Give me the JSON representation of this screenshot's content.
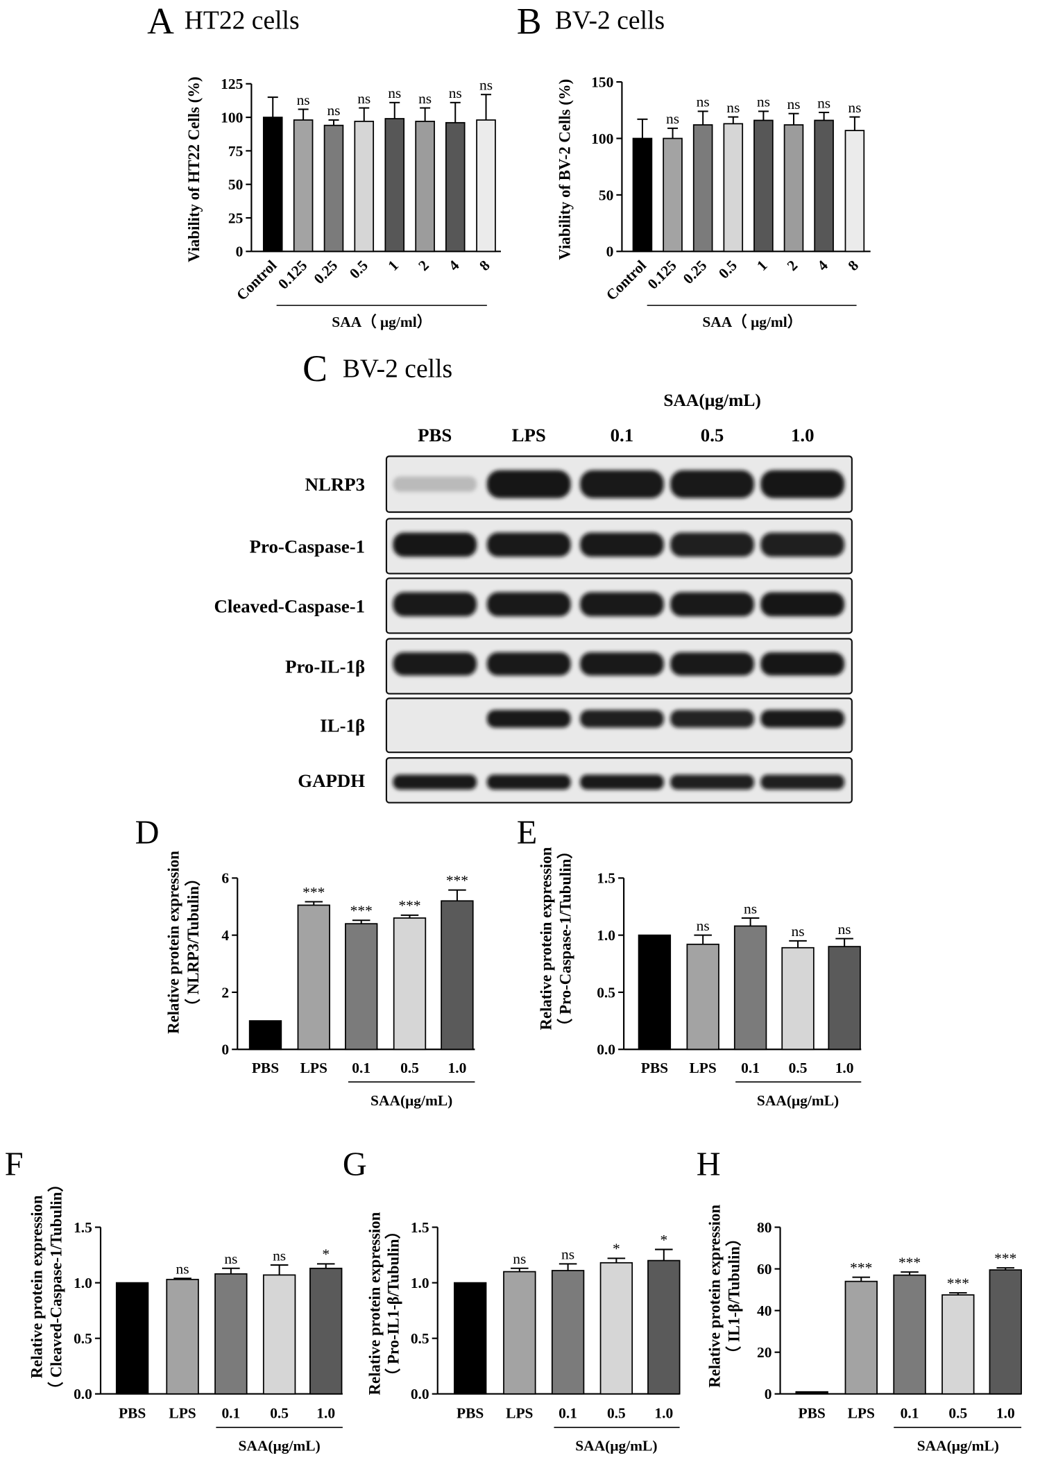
{
  "chart_data": [
    {
      "panel": "A",
      "title": "HT22 cells",
      "type": "bar",
      "ylabel": [
        "Viability of HT22 Cells (%)"
      ],
      "categories": [
        "Control",
        "0.125",
        "0.25",
        "0.5",
        "1",
        "2",
        "4",
        "8"
      ],
      "values": [
        100,
        98,
        94,
        97,
        99,
        97,
        96,
        98
      ],
      "errors": [
        15,
        8,
        4,
        10,
        12,
        10,
        15,
        19
      ],
      "significance": [
        "",
        "ns",
        "ns",
        "ns",
        "ns",
        "ns",
        "ns",
        "ns"
      ],
      "ylim": [
        0,
        125
      ],
      "yticks": [
        0,
        25,
        50,
        75,
        100,
        125
      ],
      "ytick_labels": [
        "0",
        "25",
        "50",
        "75",
        "100",
        "125"
      ],
      "group_label": "SAA（ μg/ml）",
      "group_span": [
        1,
        7
      ],
      "colors": [
        "#000000",
        "#a3a3a3",
        "#7b7b7b",
        "#d6d6d6",
        "#575757",
        "#9c9c9c",
        "#575757",
        "#ebebeb"
      ],
      "grid": false,
      "legend": "none"
    },
    {
      "panel": "B",
      "title": "BV-2 cells",
      "type": "bar",
      "ylabel": [
        "Viability of BV-2 Cells (%)"
      ],
      "categories": [
        "Control",
        "0.125",
        "0.25",
        "0.5",
        "1",
        "2",
        "4",
        "8"
      ],
      "values": [
        100,
        100,
        112,
        113,
        116,
        112,
        116,
        107
      ],
      "errors": [
        17,
        9,
        12,
        6,
        8,
        10,
        7,
        12
      ],
      "significance": [
        "",
        "ns",
        "ns",
        "ns",
        "ns",
        "ns",
        "ns",
        "ns"
      ],
      "ylim": [
        0,
        150
      ],
      "yticks": [
        0,
        50,
        100,
        150
      ],
      "ytick_labels": [
        "0",
        "50",
        "100",
        "150"
      ],
      "group_label": "SAA（ μg/ml）",
      "group_span": [
        1,
        7
      ],
      "colors": [
        "#000000",
        "#a3a3a3",
        "#7b7b7b",
        "#d6d6d6",
        "#575757",
        "#9c9c9c",
        "#575757",
        "#ebebeb"
      ],
      "grid": false,
      "legend": "none"
    },
    {
      "panel": "D",
      "type": "bar",
      "ylabel": [
        "Relative protein expression",
        "（ NLRP3/Tubulin）"
      ],
      "categories": [
        "PBS",
        "LPS",
        "0.1",
        "0.5",
        "1.0"
      ],
      "values": [
        1.0,
        5.05,
        4.4,
        4.6,
        5.2
      ],
      "errors": [
        0,
        0.12,
        0.12,
        0.1,
        0.38
      ],
      "significance": [
        "",
        "***",
        "***",
        "***",
        "***"
      ],
      "ylim": [
        0,
        6
      ],
      "yticks": [
        0,
        2,
        4,
        6
      ],
      "ytick_labels": [
        "0",
        "2",
        "4",
        "6"
      ],
      "group_label": "SAA(μg/mL)",
      "group_span": [
        2,
        4
      ],
      "colors": [
        "#000000",
        "#a3a3a3",
        "#7b7b7b",
        "#d6d6d6",
        "#5a5a5a"
      ],
      "grid": false,
      "legend": "none"
    },
    {
      "panel": "E",
      "type": "bar",
      "ylabel": [
        "Relative protein expression",
        "（ Pro-Caspase-1/Tubulin）"
      ],
      "categories": [
        "PBS",
        "LPS",
        "0.1",
        "0.5",
        "1.0"
      ],
      "values": [
        1.0,
        0.92,
        1.08,
        0.89,
        0.9
      ],
      "errors": [
        0,
        0.08,
        0.07,
        0.06,
        0.07
      ],
      "significance": [
        "",
        "ns",
        "ns",
        "ns",
        "ns"
      ],
      "ylim": [
        0,
        1.5
      ],
      "yticks": [
        0,
        0.5,
        1.0,
        1.5
      ],
      "ytick_labels": [
        "0.0",
        "0.5",
        "1.0",
        "1.5"
      ],
      "group_label": "SAA(μg/mL)",
      "group_span": [
        2,
        4
      ],
      "colors": [
        "#000000",
        "#a3a3a3",
        "#7b7b7b",
        "#d6d6d6",
        "#5a5a5a"
      ],
      "grid": false,
      "legend": "none"
    },
    {
      "panel": "F",
      "type": "bar",
      "ylabel": [
        "Relative protein expression",
        "（ Cleaved-Caspase-1/Tubulin）"
      ],
      "categories": [
        "PBS",
        "LPS",
        "0.1",
        "0.5",
        "1.0"
      ],
      "values": [
        1.0,
        1.03,
        1.08,
        1.07,
        1.13
      ],
      "errors": [
        0,
        0.01,
        0.05,
        0.09,
        0.04
      ],
      "significance": [
        "",
        "ns",
        "ns",
        "ns",
        "*"
      ],
      "ylim": [
        0,
        1.5
      ],
      "yticks": [
        0,
        0.5,
        1.0,
        1.5
      ],
      "ytick_labels": [
        "0.0",
        "0.5",
        "1.0",
        "1.5"
      ],
      "group_label": "SAA(μg/mL)",
      "group_span": [
        2,
        4
      ],
      "colors": [
        "#000000",
        "#a3a3a3",
        "#7b7b7b",
        "#d6d6d6",
        "#5a5a5a"
      ],
      "grid": false,
      "legend": "none"
    },
    {
      "panel": "G",
      "type": "bar",
      "ylabel": [
        "Relative protein expression",
        "（ Pro-IL1-β/Tubulin）"
      ],
      "categories": [
        "PBS",
        "LPS",
        "0.1",
        "0.5",
        "1.0"
      ],
      "values": [
        1.0,
        1.1,
        1.11,
        1.18,
        1.2
      ],
      "errors": [
        0,
        0.03,
        0.06,
        0.04,
        0.1
      ],
      "significance": [
        "",
        "ns",
        "ns",
        "*",
        "*"
      ],
      "ylim": [
        0,
        1.5
      ],
      "yticks": [
        0,
        0.5,
        1.0,
        1.5
      ],
      "ytick_labels": [
        "0.0",
        "0.5",
        "1.0",
        "1.5"
      ],
      "group_label": "SAA(μg/mL)",
      "group_span": [
        2,
        4
      ],
      "colors": [
        "#000000",
        "#a3a3a3",
        "#7b7b7b",
        "#d6d6d6",
        "#5a5a5a"
      ],
      "grid": false,
      "legend": "none"
    },
    {
      "panel": "H",
      "type": "bar",
      "ylabel": [
        "Relative protein expression",
        "（ IL1-β/Tubulin）"
      ],
      "categories": [
        "PBS",
        "LPS",
        "0.1",
        "0.5",
        "1.0"
      ],
      "values": [
        1,
        54,
        57,
        47.5,
        59.5
      ],
      "errors": [
        0,
        2,
        1.5,
        1,
        1
      ],
      "significance": [
        "",
        "***",
        "***",
        "***",
        "***"
      ],
      "ylim": [
        0,
        80
      ],
      "yticks": [
        0,
        20,
        40,
        60,
        80
      ],
      "ytick_labels": [
        "0",
        "20",
        "40",
        "60",
        "80"
      ],
      "group_label": "SAA(μg/mL)",
      "group_span": [
        2,
        4
      ],
      "colors": [
        "#000000",
        "#a3a3a3",
        "#7b7b7b",
        "#d6d6d6",
        "#5a5a5a"
      ],
      "grid": false,
      "legend": "none"
    }
  ],
  "blot": {
    "panel": "C",
    "title": "BV-2 cells",
    "group_label": "SAA(μg/mL)",
    "group_span": [
      2,
      4
    ],
    "lanes": [
      "PBS",
      "LPS",
      "0.1",
      "0.5",
      "1.0"
    ],
    "rows": [
      {
        "name": "NLRP3",
        "band_intensity": [
          0.2,
          1,
          0.95,
          0.95,
          1
        ]
      },
      {
        "name": "Pro-Caspase-1",
        "band_intensity": [
          1,
          0.95,
          0.95,
          0.92,
          0.92
        ]
      },
      {
        "name": "Cleaved-Caspase-1",
        "band_intensity": [
          0.95,
          0.95,
          0.95,
          0.95,
          1
        ]
      },
      {
        "name": "Pro-IL-1β",
        "band_intensity": [
          0.95,
          0.95,
          0.95,
          0.95,
          1
        ]
      },
      {
        "name": "IL-1β",
        "band_intensity": [
          0,
          0.95,
          0.92,
          0.9,
          0.95
        ]
      },
      {
        "name": "GAPDH",
        "band_intensity": [
          0.95,
          0.95,
          0.95,
          0.92,
          0.92
        ]
      }
    ],
    "colors": {
      "gel": "#e9e9e9",
      "band": "#121212",
      "frame": "#111111"
    }
  }
}
